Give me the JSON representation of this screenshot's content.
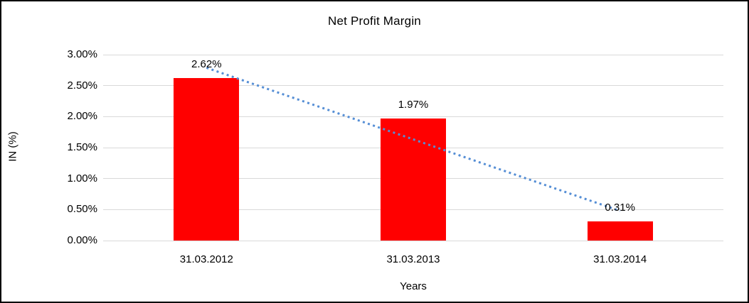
{
  "window": {
    "background": "#FFFFFF",
    "border_color": "#000000"
  },
  "chart_data": {
    "type": "bar",
    "title": "Net Profit Margin",
    "xlabel": "Years",
    "ylabel": "IN (%)",
    "categories": [
      "31.03.2012",
      "31.03.2013",
      "31.03.2014"
    ],
    "values": [
      2.62,
      1.97,
      0.31
    ],
    "data_labels": [
      "2.62%",
      "1.97%",
      "0.31%"
    ],
    "y_ticks": [
      "0.00%",
      "0.50%",
      "1.00%",
      "1.50%",
      "2.00%",
      "2.50%",
      "3.00%"
    ],
    "ylim": [
      0,
      3.0
    ],
    "grid": "horizontal",
    "legend_position": "none",
    "colors": {
      "bar": "#FF0000",
      "gridline": "#D9D9D9",
      "trendline": "#558ED5",
      "text": "#000000"
    },
    "trendline": {
      "type": "linear",
      "style": "dotted",
      "color": "#558ED5",
      "endpoint_values": [
        2.788,
        0.478
      ]
    }
  }
}
